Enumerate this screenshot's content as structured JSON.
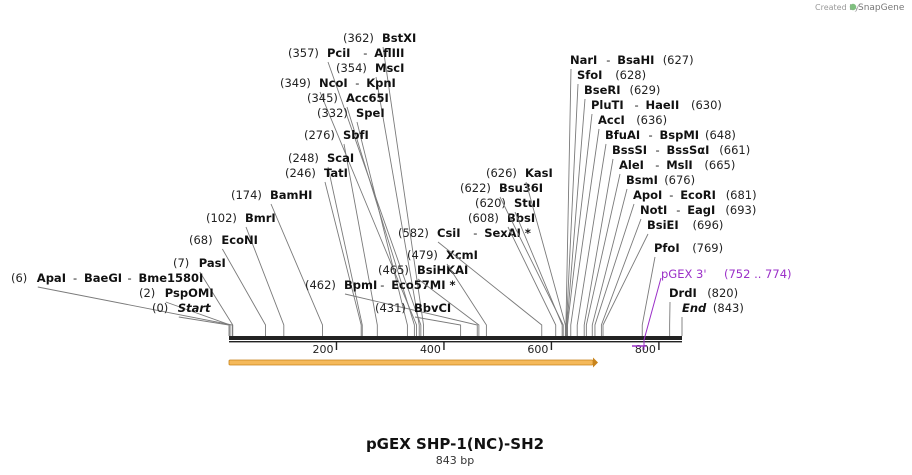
{
  "map": {
    "title": "pGEX SHP-1(NC)-SH2",
    "length_label": "843 bp",
    "total_bp": 843,
    "credit_prefix": "Created by",
    "credit_brand": "SnapGene",
    "ruler_ticks": [
      "200",
      "400",
      "600",
      "800"
    ]
  },
  "enzymes": [
    {
      "pos": 362,
      "pos_label": "(362)",
      "names": [
        "BstXI"
      ],
      "side": "right"
    },
    {
      "pos": 357,
      "pos_label": "(357)",
      "names": [
        "PciI",
        "AflIII"
      ],
      "side": "right"
    },
    {
      "pos": 354,
      "pos_label": "(354)",
      "names": [
        "MscI"
      ],
      "side": "right"
    },
    {
      "pos": 349,
      "pos_label": "(349)",
      "names": [
        "NcoI",
        "KpnI"
      ],
      "side": "right"
    },
    {
      "pos": 345,
      "pos_label": "(345)",
      "names": [
        "Acc65I"
      ],
      "side": "right"
    },
    {
      "pos": 332,
      "pos_label": "(332)",
      "names": [
        "SpeI"
      ],
      "side": "right"
    },
    {
      "pos": 276,
      "pos_label": "(276)",
      "names": [
        "SbfI"
      ],
      "side": "right"
    },
    {
      "pos": 248,
      "pos_label": "(248)",
      "names": [
        "ScaI"
      ],
      "side": "right"
    },
    {
      "pos": 246,
      "pos_label": "(246)",
      "names": [
        "TatI"
      ],
      "side": "right"
    },
    {
      "pos": 174,
      "pos_label": "(174)",
      "names": [
        "BamHI"
      ],
      "side": "right"
    },
    {
      "pos": 102,
      "pos_label": "(102)",
      "names": [
        "BmrI"
      ],
      "side": "right"
    },
    {
      "pos": 68,
      "pos_label": "(68)",
      "names": [
        "EcoNI"
      ],
      "side": "right"
    },
    {
      "pos": 7,
      "pos_label": "(7)",
      "names": [
        "PasI"
      ],
      "side": "right"
    },
    {
      "pos": 6,
      "pos_label": "(6)",
      "names": [
        "ApaI",
        "BaeGI",
        "Bme1580I"
      ],
      "side": "right"
    },
    {
      "pos": 2,
      "pos_label": "(2)",
      "names": [
        "PspOMI"
      ],
      "side": "right"
    },
    {
      "pos": 0,
      "pos_label": "(0)",
      "names": [
        "Start"
      ],
      "side": "right",
      "italic": true
    },
    {
      "pos": 462,
      "pos_label": "(462)",
      "names": [
        "BpmI",
        "Eco57MI *"
      ],
      "side": "right"
    },
    {
      "pos": 465,
      "pos_label": "(465)",
      "names": [
        "BsiHKAI"
      ],
      "side": "right"
    },
    {
      "pos": 479,
      "pos_label": "(479)",
      "names": [
        "XcmI"
      ],
      "side": "right"
    },
    {
      "pos": 431,
      "pos_label": "(431)",
      "names": [
        "BbvCI"
      ],
      "side": "right"
    },
    {
      "pos": 582,
      "pos_label": "(582)",
      "names": [
        "CsiI",
        "SexAI *"
      ],
      "side": "right"
    },
    {
      "pos": 608,
      "pos_label": "(608)",
      "names": [
        "BbsI"
      ],
      "side": "right"
    },
    {
      "pos": 620,
      "pos_label": "(620)",
      "names": [
        "StuI"
      ],
      "side": "right"
    },
    {
      "pos": 622,
      "pos_label": "(622)",
      "names": [
        "Bsu36I"
      ],
      "side": "right"
    },
    {
      "pos": 626,
      "pos_label": "(626)",
      "names": [
        "KasI"
      ],
      "side": "right"
    },
    {
      "pos": 627,
      "pos_label": "(627)",
      "names": [
        "NarI",
        "BsaHI"
      ],
      "side": "left"
    },
    {
      "pos": 628,
      "pos_label": "(628)",
      "names": [
        "SfoI"
      ],
      "side": "left"
    },
    {
      "pos": 629,
      "pos_label": "(629)",
      "names": [
        "BseRI"
      ],
      "side": "left"
    },
    {
      "pos": 630,
      "pos_label": "(630)",
      "names": [
        "PluTI",
        "HaeII"
      ],
      "side": "left"
    },
    {
      "pos": 636,
      "pos_label": "(636)",
      "names": [
        "AccI"
      ],
      "side": "left"
    },
    {
      "pos": 648,
      "pos_label": "(648)",
      "names": [
        "BfuAI",
        "BspMI"
      ],
      "side": "left"
    },
    {
      "pos": 661,
      "pos_label": "(661)",
      "names": [
        "BssSI",
        "BssSαI"
      ],
      "side": "left"
    },
    {
      "pos": 665,
      "pos_label": "(665)",
      "names": [
        "AleI",
        "MslI"
      ],
      "side": "left"
    },
    {
      "pos": 676,
      "pos_label": "(676)",
      "names": [
        "BsmI"
      ],
      "side": "left"
    },
    {
      "pos": 681,
      "pos_label": "(681)",
      "names": [
        "ApoI",
        "EcoRI"
      ],
      "side": "left"
    },
    {
      "pos": 693,
      "pos_label": "(693)",
      "names": [
        "NotI",
        "EagI"
      ],
      "side": "left"
    },
    {
      "pos": 696,
      "pos_label": "(696)",
      "names": [
        "BsiEI"
      ],
      "side": "left"
    },
    {
      "pos": 769,
      "pos_label": "(769)",
      "names": [
        "PfoI"
      ],
      "side": "left"
    },
    {
      "pos": 820,
      "pos_label": "(820)",
      "names": [
        "DrdI"
      ],
      "side": "left"
    },
    {
      "pos": 843,
      "pos_label": "(843)",
      "names": [
        "End"
      ],
      "side": "left",
      "italic": true
    }
  ],
  "feature_label": {
    "name": "pGEX 3'",
    "range_label": "(752 .. 774)",
    "color": "#9b30c8"
  },
  "colors": {
    "orf_fill": "#f5b95a",
    "orf_stroke": "#c8841c",
    "backbone": "#222222"
  }
}
